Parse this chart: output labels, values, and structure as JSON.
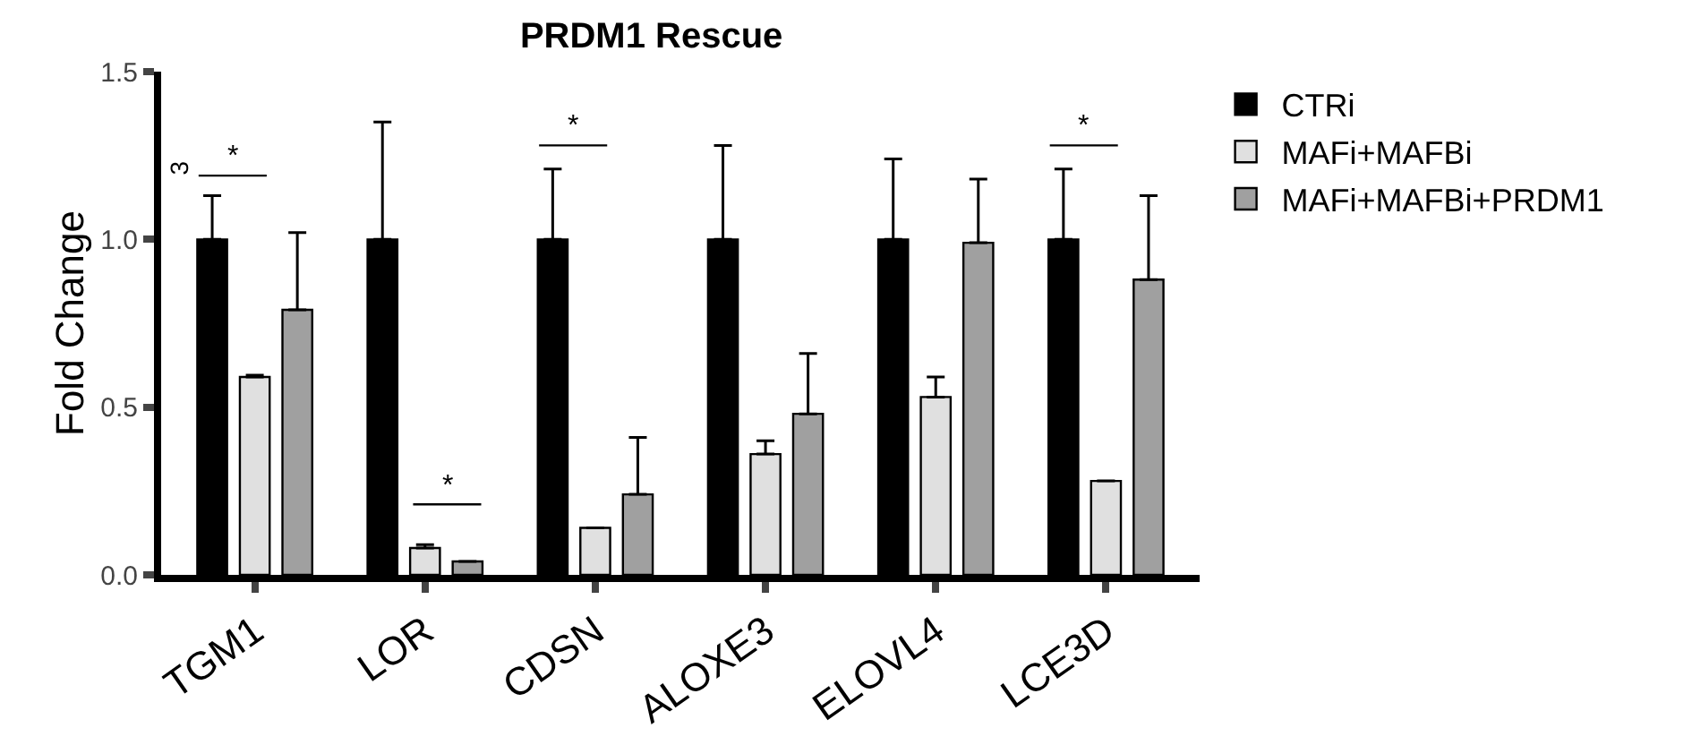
{
  "chart_data": {
    "type": "bar",
    "title": "PRDM1 Rescue",
    "ylabel": "Fold Change",
    "categories": [
      "TGM1",
      "LOR",
      "CDSN",
      "ALOXE3",
      "ELOVL4",
      "LCE3D"
    ],
    "series": [
      {
        "name": "CTRi",
        "color": "#000000",
        "values": [
          1.0,
          1.0,
          1.0,
          1.0,
          1.0,
          1.0
        ],
        "errors": [
          0.13,
          0.35,
          0.21,
          0.28,
          0.24,
          0.21
        ]
      },
      {
        "name": "MAFi+MAFBi",
        "color": "#e0e0e0",
        "values": [
          0.59,
          0.08,
          0.14,
          0.36,
          0.53,
          0.28
        ],
        "errors": [
          0.005,
          0.01,
          null,
          0.04,
          0.06,
          null
        ]
      },
      {
        "name": "MAFi+MAFBi+PRDM1",
        "color": "#a0a0a0",
        "values": [
          0.79,
          0.04,
          0.24,
          0.48,
          0.99,
          0.88
        ],
        "errors": [
          0.23,
          null,
          0.17,
          0.18,
          0.19,
          0.25
        ]
      }
    ],
    "ylim": [
      0,
      1.5
    ],
    "yticks": [
      {
        "value": 0,
        "label": "0.0"
      },
      0.5,
      {
        "value": 1,
        "label": "1.0"
      },
      1.5
    ],
    "legend": "top right",
    "grid": false,
    "annotations": [
      "*",
      "*",
      "*",
      "*",
      "3"
    ]
  }
}
